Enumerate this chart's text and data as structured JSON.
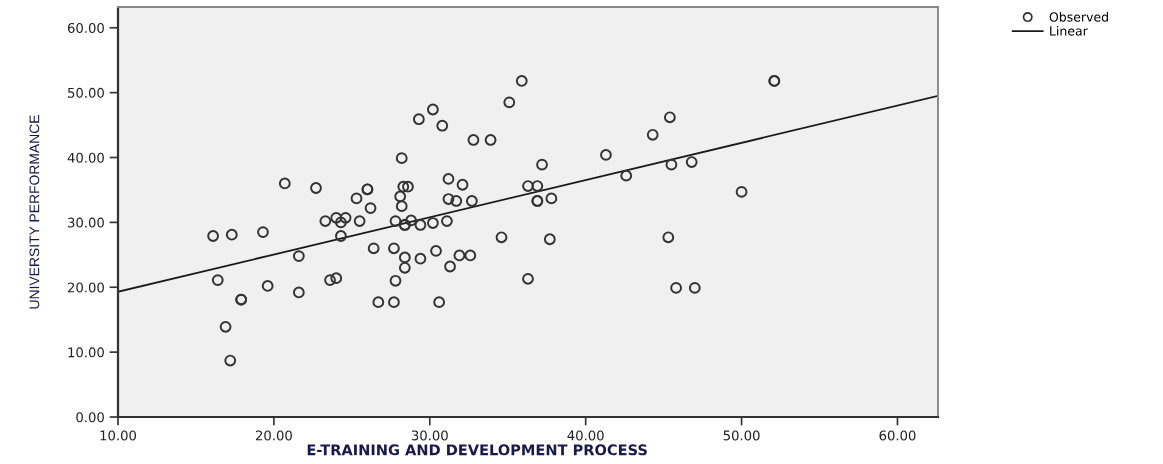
{
  "chart_data": {
    "type": "scatter",
    "xlabel": "E-TRAINING AND DEVELOPMENT PROCESS",
    "ylabel": "UNIVERSITY PERFORMANCE",
    "xlim": [
      10,
      62.6
    ],
    "ylim": [
      0,
      63.2
    ],
    "xticks": [
      {
        "value": 10,
        "label": "10.00"
      },
      {
        "value": 20,
        "label": "20.00"
      },
      {
        "value": 30,
        "label": "30.00"
      },
      {
        "value": 40,
        "label": "40.00"
      },
      {
        "value": 50,
        "label": "50.00"
      },
      {
        "value": 60,
        "label": "60.00"
      }
    ],
    "yticks": [
      {
        "value": 0,
        "label": "0.00"
      },
      {
        "value": 10,
        "label": "10.00"
      },
      {
        "value": 20,
        "label": "20.00"
      },
      {
        "value": 30,
        "label": "30.00"
      },
      {
        "value": 40,
        "label": "40.00"
      },
      {
        "value": 50,
        "label": "50.00"
      },
      {
        "value": 60,
        "label": "60.00"
      }
    ],
    "grid": false,
    "legend": "top right",
    "series": [
      {
        "name": "Observed",
        "marker": "circle",
        "color": "#333333",
        "x": [
          30.2,
          29.3,
          30.8,
          28.2,
          20.7,
          22.7,
          26.0,
          26.0,
          28.3,
          28.6,
          31.2,
          32.1,
          25.3,
          28.1,
          26.2,
          28.2,
          31.2,
          31.7,
          32.7,
          23.3,
          24.0,
          24.3,
          24.6,
          25.5,
          27.8,
          28.4,
          28.4,
          28.8,
          29.4,
          30.2,
          31.1,
          16.1,
          17.3,
          19.3,
          24.3,
          21.6,
          26.4,
          27.7,
          28.4,
          29.4,
          30.4,
          31.9,
          32.6,
          28.4,
          31.3,
          16.4,
          23.6,
          24.0,
          27.8,
          19.6,
          21.6,
          17.9,
          17.9,
          26.7,
          27.7,
          30.6,
          16.9,
          17.2,
          34.6,
          37.7,
          45.3,
          36.3,
          45.8,
          47.0,
          35.9,
          52.1,
          52.1,
          35.1,
          45.4,
          44.3,
          32.8,
          33.9,
          41.3,
          37.2,
          45.5,
          46.8,
          42.6,
          36.3,
          36.9,
          36.9,
          36.9,
          37.8,
          50.0
        ],
        "values": [
          47.4,
          45.9,
          44.9,
          39.9,
          36.0,
          35.3,
          35.1,
          35.1,
          35.5,
          35.5,
          36.7,
          35.8,
          33.7,
          34.0,
          32.2,
          32.5,
          33.6,
          33.3,
          33.3,
          30.2,
          30.7,
          30.0,
          30.7,
          30.2,
          30.2,
          29.6,
          29.6,
          30.3,
          29.6,
          29.9,
          30.2,
          27.9,
          28.1,
          28.5,
          27.9,
          24.8,
          26.0,
          26.0,
          24.6,
          24.4,
          25.6,
          24.9,
          24.9,
          23.0,
          23.2,
          21.1,
          21.1,
          21.4,
          21.0,
          20.2,
          19.2,
          18.1,
          18.1,
          17.7,
          17.7,
          17.7,
          13.9,
          8.7,
          27.7,
          27.4,
          27.7,
          21.3,
          19.9,
          19.9,
          51.8,
          51.8,
          51.8,
          48.5,
          46.2,
          43.5,
          42.7,
          42.7,
          40.4,
          38.9,
          38.9,
          39.3,
          37.2,
          35.6,
          35.6,
          33.3,
          33.3,
          33.7,
          34.7
        ]
      },
      {
        "name": "Linear",
        "type": "line",
        "line_style": "solid",
        "color": "#1a1a1a",
        "x": [
          10,
          62.6
        ],
        "values": [
          19.3,
          49.5
        ]
      }
    ]
  }
}
